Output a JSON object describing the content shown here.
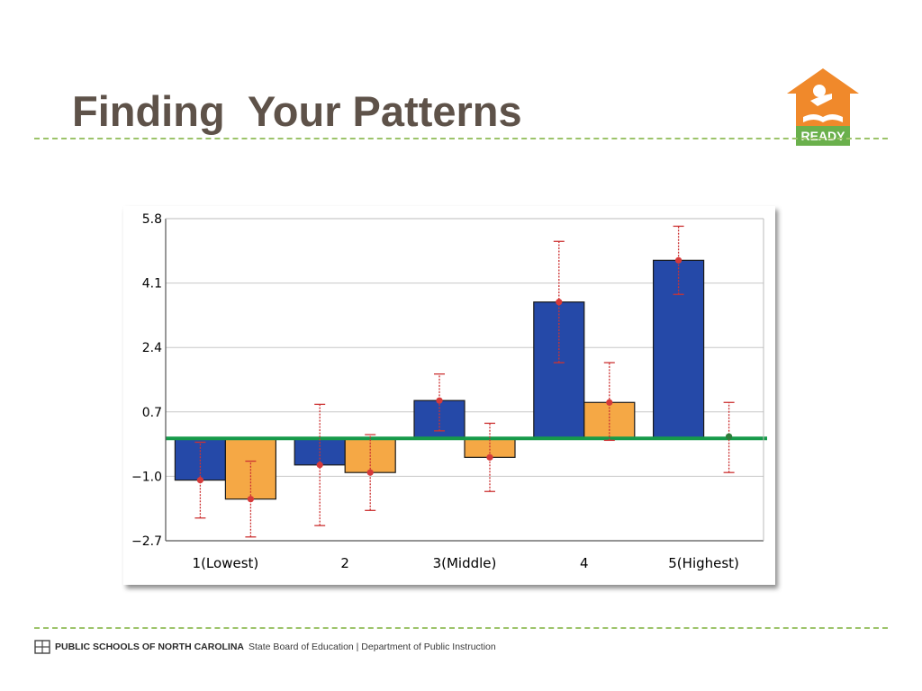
{
  "slide": {
    "title": "Finding  Your Patterns",
    "logo_text": "READY",
    "footer": {
      "org": "PUBLIC SCHOOLS OF NORTH CAROLINA",
      "rest": "State Board of Education | Department of Public Instruction"
    }
  },
  "colors": {
    "title": "#5e5249",
    "rule": "#9cc36a",
    "logo_orange": "#f0892b",
    "logo_green": "#6ab04c",
    "series_blue": "#2549a8",
    "series_orange": "#f5a845",
    "error_bar": "#cc3333",
    "reference_line": "#169a4a"
  },
  "chart_data": {
    "type": "bar",
    "categories": [
      "1(Lowest)",
      "2",
      "3(Middle)",
      "4",
      "5(Highest)"
    ],
    "series": [
      {
        "color": "#2549a8",
        "values": [
          -1.1,
          -0.7,
          1.0,
          3.6,
          4.7
        ],
        "error_low": [
          -2.1,
          -2.3,
          0.2,
          2.0,
          3.8
        ],
        "error_high": [
          -0.1,
          0.9,
          1.7,
          5.2,
          5.6
        ]
      },
      {
        "color": "#f5a845",
        "values": [
          -1.6,
          -0.9,
          -0.5,
          0.95,
          null
        ],
        "points": [
          -1.6,
          -0.9,
          -0.5,
          0.95,
          0.05
        ],
        "error_low": [
          -2.6,
          -1.9,
          -1.4,
          -0.05,
          -0.9
        ],
        "error_high": [
          -0.6,
          0.1,
          0.4,
          2.0,
          0.95
        ]
      }
    ],
    "reference_line": 0.0,
    "ylim": [
      -2.7,
      5.8
    ],
    "yticks": [
      "5.8",
      "4.1",
      "2.4",
      "0.7",
      "−1.0",
      "−2.7"
    ],
    "ytick_values": [
      5.8,
      4.1,
      2.4,
      0.7,
      -1.0,
      -2.7
    ],
    "grid": true,
    "legend": false
  }
}
